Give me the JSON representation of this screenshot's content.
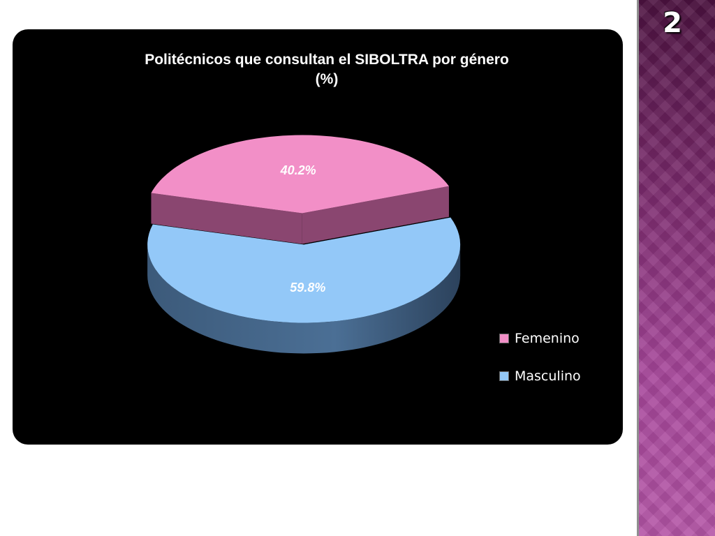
{
  "slide_number": "2",
  "chart_data": {
    "type": "pie",
    "title": "Politécnicos que consultan el SIBOLTRA por género",
    "subtitle": "(%)",
    "slices": [
      {
        "label": "Femenino",
        "value": 40.2,
        "display": "40.2%",
        "color": "#f28fc7"
      },
      {
        "label": "Masculino",
        "value": 59.8,
        "display": "59.8%",
        "color": "#93c8f8"
      }
    ],
    "legend_position": "right",
    "style": "3d-exploded"
  }
}
